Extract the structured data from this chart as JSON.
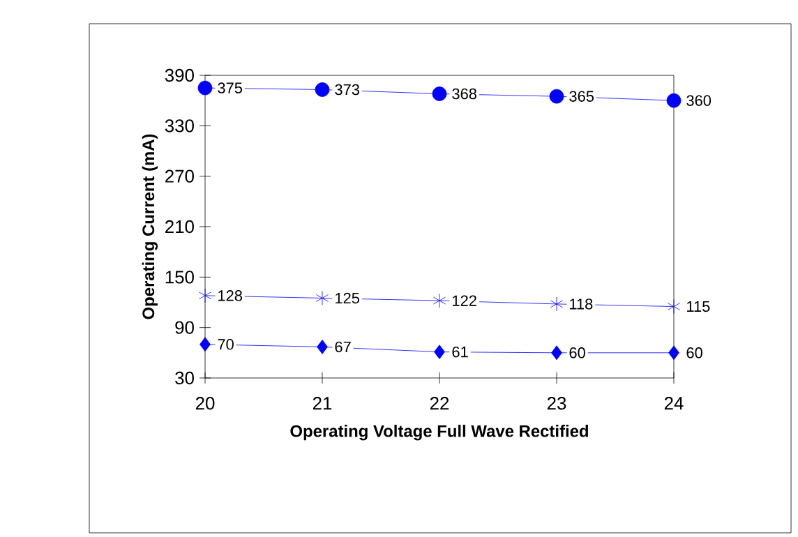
{
  "chart_data": {
    "type": "line",
    "xlabel": "Operating Voltage Full Wave Rectified",
    "ylabel": "Operating Current (mA)",
    "x": [
      20,
      21,
      22,
      23,
      24
    ],
    "series": [
      {
        "color": "#0000ff",
        "marker": "circle",
        "values": [
          375,
          373,
          368,
          365,
          360
        ]
      },
      {
        "color": "#0000ff",
        "marker": "cross",
        "values": [
          128,
          125,
          122,
          118,
          115
        ]
      },
      {
        "color": "#0000ff",
        "marker": "diamond",
        "values": [
          70,
          67,
          61,
          60,
          60
        ]
      }
    ],
    "xlim": [
      20,
      24
    ],
    "ylim": [
      30,
      390
    ],
    "xticks": [
      20,
      21,
      22,
      23,
      24
    ],
    "yticks": [
      30,
      90,
      150,
      210,
      270,
      330,
      390
    ],
    "data_labels": true,
    "line_style": "solid",
    "grid": false
  }
}
